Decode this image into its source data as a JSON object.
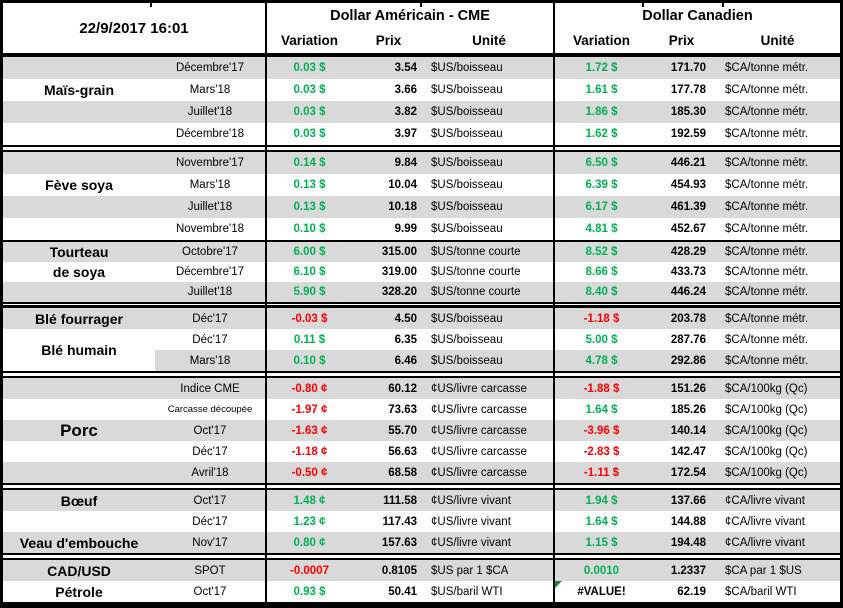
{
  "meta": {
    "timestamp": "22/9/2017 16:01"
  },
  "header": {
    "us_title": "Dollar Américain - CME",
    "ca_title": "Dollar Canadien",
    "col_variation": "Variation",
    "col_prix": "Prix",
    "col_unite": "Unité"
  },
  "colors": {
    "positive": "#00B050",
    "negative": "#FF0000",
    "row_shade": "#D9D9D9",
    "border": "#000000",
    "error_indicator": "#1E8449"
  },
  "sections": [
    {
      "id": "mais-grain",
      "labels": [
        {
          "text": "Maïs-grain",
          "row": 1,
          "span": 1
        }
      ],
      "rows": [
        {
          "contract": "Décembre'17",
          "var_us": "0.03 $",
          "prix_us": "3.54",
          "unit_us": "$US/boisseau",
          "var_ca": "1.72 $",
          "prix_ca": "171.70",
          "unit_ca": "$CA/tonne métr.",
          "shade": true
        },
        {
          "contract": "Mars'18",
          "var_us": "0.03 $",
          "prix_us": "3.66",
          "unit_us": "$US/boisseau",
          "var_ca": "1.61 $",
          "prix_ca": "177.78",
          "unit_ca": "$CA/tonne métr.",
          "shade": false
        },
        {
          "contract": "Juillet'18",
          "var_us": "0.03 $",
          "prix_us": "3.82",
          "unit_us": "$US/boisseau",
          "var_ca": "1.86 $",
          "prix_ca": "185.30",
          "unit_ca": "$CA/tonne métr.",
          "shade": true
        },
        {
          "contract": "Décembre'18",
          "var_us": "0.03 $",
          "prix_us": "3.97",
          "unit_us": "$US/boisseau",
          "var_ca": "1.62 $",
          "prix_ca": "192.59",
          "unit_ca": "$CA/tonne métr.",
          "shade": false
        }
      ]
    },
    {
      "id": "feve-soya",
      "labels": [
        {
          "text": "Fève soya",
          "row": 1,
          "span": 1
        }
      ],
      "rows": [
        {
          "contract": "Novembre'17",
          "var_us": "0.14 $",
          "prix_us": "9.84",
          "unit_us": "$US/boisseau",
          "var_ca": "6.50 $",
          "prix_ca": "446.21",
          "unit_ca": "$CA/tonne métr.",
          "shade": true
        },
        {
          "contract": "Mars'18",
          "var_us": "0.13 $",
          "prix_us": "10.04",
          "unit_us": "$US/boisseau",
          "var_ca": "6.39 $",
          "prix_ca": "454.93",
          "unit_ca": "$CA/tonne métr.",
          "shade": false
        },
        {
          "contract": "Juillet'18",
          "var_us": "0.13 $",
          "prix_us": "10.18",
          "unit_us": "$US/boisseau",
          "var_ca": "6.17 $",
          "prix_ca": "461.39",
          "unit_ca": "$CA/tonne métr.",
          "shade": true
        },
        {
          "contract": "Novembre'18",
          "var_us": "0.10 $",
          "prix_us": "9.99",
          "unit_us": "$US/boisseau",
          "var_ca": "4.81 $",
          "prix_ca": "452.67",
          "unit_ca": "$CA/tonne métr.",
          "shade": false
        }
      ]
    },
    {
      "id": "tourteau-de-soya",
      "labels": [
        {
          "text": "Tourteau",
          "row": 0,
          "span": 1
        },
        {
          "text": "de soya",
          "row": 1,
          "span": 1
        }
      ],
      "rows": [
        {
          "contract": "Octobre'17",
          "var_us": "6.00 $",
          "prix_us": "315.00",
          "unit_us": "$US/tonne courte",
          "var_ca": "8.52 $",
          "prix_ca": "428.29",
          "unit_ca": "$CA/tonne métr.",
          "shade": true
        },
        {
          "contract": "Décembre'17",
          "var_us": "6.10 $",
          "prix_us": "319.00",
          "unit_us": "$US/tonne courte",
          "var_ca": "8.66 $",
          "prix_ca": "433.73",
          "unit_ca": "$CA/tonne métr.",
          "shade": false
        },
        {
          "contract": "Juillet'18",
          "var_us": "5.90 $",
          "prix_us": "328.20",
          "unit_us": "$US/tonne courte",
          "var_ca": "8.40 $",
          "prix_ca": "446.24",
          "unit_ca": "$CA/tonne métr.",
          "shade": true
        }
      ]
    },
    {
      "id": "ble",
      "thick_top": true,
      "labels": [
        {
          "text": "Blé fourrager",
          "row": 0,
          "span": 1
        },
        {
          "text": "Blé humain",
          "row": 1,
          "span": 2,
          "bg": "#FFFFFF"
        }
      ],
      "rows": [
        {
          "contract": "Déc'17",
          "var_us": "-0.03 $",
          "prix_us": "4.50",
          "unit_us": "$US/boisseau",
          "var_ca": "-1.18 $",
          "prix_ca": "203.78",
          "unit_ca": "$CA/tonne métr.",
          "shade": true
        },
        {
          "contract": "Déc'17",
          "var_us": "0.11 $",
          "prix_us": "6.35",
          "unit_us": "$US/boisseau",
          "var_ca": "5.00 $",
          "prix_ca": "287.76",
          "unit_ca": "$CA/tonne métr.",
          "shade": false
        },
        {
          "contract": "Mars'18",
          "var_us": "0.10 $",
          "prix_us": "6.46",
          "unit_us": "$US/boisseau",
          "var_ca": "4.78 $",
          "prix_ca": "292.86",
          "unit_ca": "$CA/tonne métr.",
          "shade": true
        }
      ]
    },
    {
      "id": "porc",
      "labels": [
        {
          "text": "Porc",
          "row": 2,
          "span": 1,
          "size": 17
        }
      ],
      "rows": [
        {
          "contract": "Indice CME",
          "var_us": "-0.80 ¢",
          "prix_us": "60.12",
          "unit_us": "¢US/livre carcasse",
          "var_ca": "-1.88 $",
          "prix_ca": "151.26",
          "unit_ca": "$CA/100kg (Qc)",
          "shade": true
        },
        {
          "contract": "Carcasse découpée",
          "contract_small": true,
          "var_us": "-1.97 ¢",
          "prix_us": "73.63",
          "unit_us": "¢US/livre carcasse",
          "var_ca": "1.64 $",
          "prix_ca": "185.26",
          "unit_ca": "$CA/100kg (Qc)",
          "shade": false
        },
        {
          "contract": "Oct'17",
          "var_us": "-1.63 ¢",
          "prix_us": "55.70",
          "unit_us": "¢US/livre carcasse",
          "var_ca": "-3.96 $",
          "prix_ca": "140.14",
          "unit_ca": "$CA/100kg (Qc)",
          "shade": true
        },
        {
          "contract": "Déc'17",
          "var_us": "-1.18 ¢",
          "prix_us": "56.63",
          "unit_us": "¢US/livre carcasse",
          "var_ca": "-2.83 $",
          "prix_ca": "142.47",
          "unit_ca": "$CA/100kg (Qc)",
          "shade": false
        },
        {
          "contract": "Avril'18",
          "var_us": "-0.50 ¢",
          "prix_us": "68.58",
          "unit_us": "¢US/livre carcasse",
          "var_ca": "-1.11 $",
          "prix_ca": "172.54",
          "unit_ca": "$CA/100kg (Qc)",
          "shade": true
        }
      ]
    },
    {
      "id": "boeuf-veau",
      "labels": [
        {
          "text": "Bœuf",
          "row": 0,
          "span": 1
        },
        {
          "text": "Veau d'embouche",
          "row": 2,
          "span": 1
        }
      ],
      "rows": [
        {
          "contract": "Oct'17",
          "var_us": "1.48 ¢",
          "prix_us": "111.58",
          "unit_us": "¢US/livre vivant",
          "var_ca": "1.94 $",
          "prix_ca": "137.66",
          "unit_ca": "¢CA/livre vivant",
          "shade": true
        },
        {
          "contract": "Déc'17",
          "var_us": "1.23 ¢",
          "prix_us": "117.43",
          "unit_us": "¢US/livre vivant",
          "var_ca": "1.64 $",
          "prix_ca": "144.88",
          "unit_ca": "¢CA/livre vivant",
          "shade": false
        },
        {
          "contract": "Nov'17",
          "var_us": "0.80 ¢",
          "prix_us": "157.63",
          "unit_us": "¢US/livre vivant",
          "var_ca": "1.15 $",
          "prix_ca": "194.48",
          "unit_ca": "¢CA/livre vivant",
          "shade": true
        }
      ]
    },
    {
      "id": "cad-usd-petrole",
      "labels": [
        {
          "text": "CAD/USD",
          "row": 0,
          "span": 1
        },
        {
          "text": "Pétrole",
          "row": 1,
          "span": 1
        }
      ],
      "rows": [
        {
          "contract": "SPOT",
          "var_us": "-0.0007",
          "prix_us": "0.8105",
          "unit_us": "$US par 1 $CA",
          "var_ca": "0.0010",
          "prix_ca": "1.2337",
          "unit_ca": "$CA par 1 $US",
          "shade": true
        },
        {
          "contract": "Oct'17",
          "var_us": "0.93 $",
          "prix_us": "50.41",
          "unit_us": "$US/baril WTI",
          "var_ca": "#VALUE!",
          "prix_ca": "62.19",
          "unit_ca": "$CA/baril WTI",
          "shade": false,
          "var_ca_error_indicator": true
        }
      ]
    }
  ]
}
